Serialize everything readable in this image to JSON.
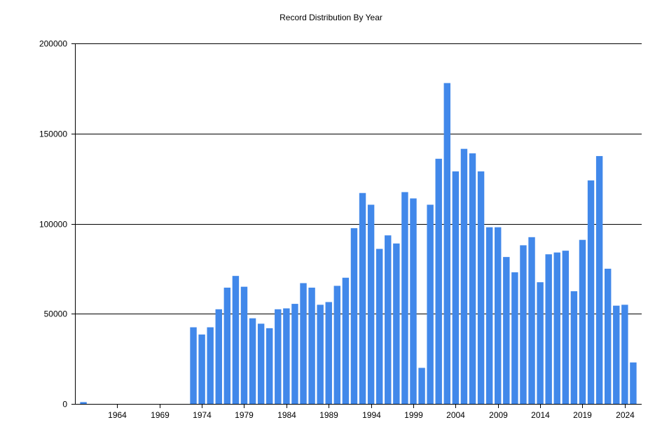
{
  "chart_data": {
    "type": "bar",
    "title": "Record Distribution By Year",
    "xlabel": "",
    "ylabel": "",
    "ylim": [
      0,
      200000
    ],
    "yticks": [
      0,
      50000,
      100000,
      150000,
      200000
    ],
    "xlim": [
      1959,
      2026
    ],
    "xticks": [
      1964,
      1969,
      1974,
      1979,
      1984,
      1989,
      1994,
      1999,
      2004,
      2009,
      2014,
      2019,
      2024
    ],
    "grid": true,
    "bar_color": "#4188EA",
    "x": [
      1960,
      1973,
      1974,
      1975,
      1976,
      1977,
      1978,
      1979,
      1980,
      1981,
      1982,
      1983,
      1984,
      1985,
      1986,
      1987,
      1988,
      1989,
      1990,
      1991,
      1992,
      1993,
      1994,
      1995,
      1996,
      1997,
      1998,
      1999,
      2000,
      2001,
      2002,
      2003,
      2004,
      2005,
      2006,
      2007,
      2008,
      2009,
      2010,
      2011,
      2012,
      2013,
      2014,
      2015,
      2016,
      2017,
      2018,
      2019,
      2020,
      2021,
      2022,
      2023,
      2024,
      2025
    ],
    "values": [
      1000,
      42500,
      38500,
      42500,
      52500,
      64500,
      71000,
      65000,
      47500,
      44500,
      42000,
      52500,
      53000,
      55500,
      67000,
      64500,
      55000,
      56500,
      65500,
      70000,
      97500,
      117000,
      110500,
      86000,
      93500,
      89000,
      117500,
      114000,
      20000,
      110500,
      136000,
      178000,
      129000,
      141500,
      139000,
      129000,
      98000,
      98000,
      81500,
      73000,
      88000,
      92500,
      67500,
      83000,
      84000,
      85000,
      62500,
      91000,
      124000,
      137500,
      75000,
      54500,
      55000,
      23000
    ]
  }
}
